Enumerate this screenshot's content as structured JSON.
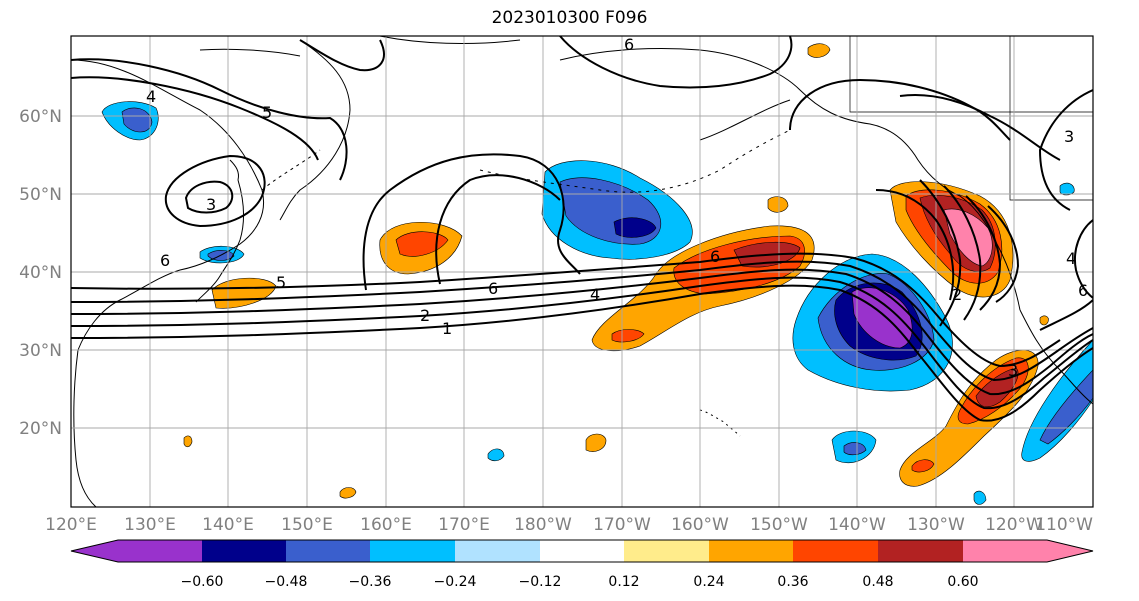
{
  "title": "2023010300 F096",
  "lat_labels": [
    "60°N",
    "50°N",
    "40°N",
    "30°N",
    "20°N"
  ],
  "lon_labels": [
    "120°E",
    "130°E",
    "140°E",
    "150°E",
    "160°E",
    "170°E",
    "180°W",
    "170°W",
    "160°W",
    "150°W",
    "140°W",
    "130°W",
    "120°W",
    "110°W"
  ],
  "colorbar": {
    "ticks": [
      "−0.60",
      "−0.48",
      "−0.36",
      "−0.24",
      "−0.12",
      "0.12",
      "0.24",
      "0.36",
      "0.48",
      "0.60"
    ],
    "colors": [
      "#9932cc",
      "#00008b",
      "#3a5fcd",
      "#00bfff",
      "#b0e2ff",
      "#ffffff",
      "#ffec8b",
      "#ffa500",
      "#ff4500",
      "#b22222",
      "#ff82ab"
    ]
  },
  "contour_labels": [
    "6",
    "4",
    "5",
    "3",
    "6",
    "5",
    "2",
    "1",
    "6",
    "4",
    "6",
    "2",
    "3",
    "3",
    "4",
    "6"
  ]
}
